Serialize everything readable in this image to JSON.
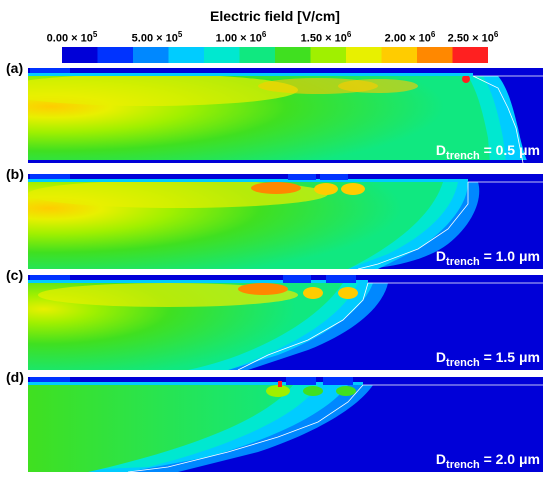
{
  "title": "Electric field [V/cm]",
  "colorbar": {
    "ticks": [
      {
        "base": "0.00 × 10",
        "exp": "5"
      },
      {
        "base": "5.00 × 10",
        "exp": "5"
      },
      {
        "base": "1.00 × 10",
        "exp": "6"
      },
      {
        "base": "1.50 × 10",
        "exp": "6"
      },
      {
        "base": "2.00 × 10",
        "exp": "6"
      },
      {
        "base": "2.50 × 10",
        "exp": "6"
      }
    ],
    "colors": [
      "#0000d8",
      "#0033ff",
      "#0088ff",
      "#00ccff",
      "#00e8d0",
      "#10e880",
      "#40e020",
      "#a0f000",
      "#e8f000",
      "#ffcc00",
      "#ff8800",
      "#ff2020"
    ]
  },
  "panels": [
    {
      "tag": "(a)",
      "d_prefix": "D",
      "d_sub": "trench",
      "d_value": "= 0.5 μm"
    },
    {
      "tag": "(b)",
      "d_prefix": "D",
      "d_sub": "trench",
      "d_value": "= 1.0 μm"
    },
    {
      "tag": "(c)",
      "d_prefix": "D",
      "d_sub": "trench",
      "d_value": "= 1.5 μm"
    },
    {
      "tag": "(d)",
      "d_prefix": "D",
      "d_sub": "trench",
      "d_value": "= 2.0 μm"
    }
  ]
}
